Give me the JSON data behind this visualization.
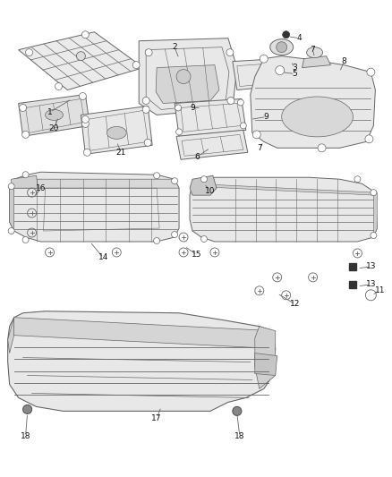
{
  "bg_color": "#ffffff",
  "line_color": "#666666",
  "fill_color": "#f0f0f0",
  "fill_dark": "#d8d8d8",
  "label_fontsize": 6.5,
  "line_width": 0.7,
  "figsize": [
    4.38,
    5.33
  ],
  "dpi": 100
}
